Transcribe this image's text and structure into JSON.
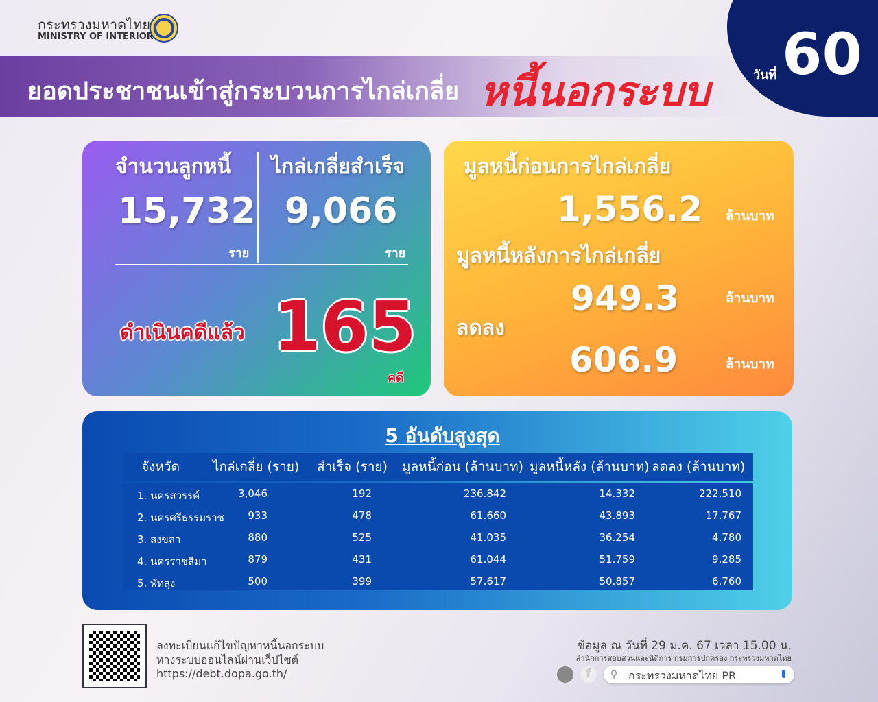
{
  "header": {
    "ministry_th": "กระทรวงมหาดไทย",
    "ministry_en": "MINISTRY OF INTERIOR",
    "title": "ยอดประชาชนเข้าสู่กระบวนการไกล่เกลี่ย",
    "title_highlight": "หนี้นอกระบบ",
    "day_label": "วันที่",
    "day_number": "60"
  },
  "left_card": {
    "debtors_label": "จำนวนลูกหนี้",
    "debtors_value": "15,732",
    "debtors_unit": "ราย",
    "success_label": "ไกล่เกลี่ยสำเร็จ",
    "success_value": "9,066",
    "success_unit": "ราย",
    "court_label": "ดำเนินคดีแล้ว",
    "court_value": "165",
    "court_unit": "คดี"
  },
  "right_card": {
    "before_label": "มูลหนี้ก่อนการไกล่เกลี่ย",
    "before_value": "1,556.2",
    "before_unit": "ล้านบาท",
    "after_label": "มูลหนี้หลังการไกล่เกลี่ย",
    "after_value": "949.3",
    "after_unit": "ล้านบาท",
    "reduced_label": "ลดลง",
    "reduced_value": "606.9",
    "reduced_unit": "ล้านบาท"
  },
  "table": {
    "title": "5 อันดับสูงสุด",
    "headers": [
      "จังหวัด",
      "ไกล่เกลี่ย (ราย)",
      "สำเร็จ (ราย)",
      "มูลหนี้ก่อน (ล้านบาท)",
      "มูลหนี้หลัง (ล้านบาท)",
      "ลดลง (ล้านบาท)"
    ],
    "rows": [
      [
        "1. นครสวรรค์",
        "3,046",
        "192",
        "236.842",
        "14.332",
        "222.510"
      ],
      [
        "2. นครศรีธรรมราช",
        "933",
        "478",
        "61.660",
        "43.893",
        "17.767"
      ],
      [
        "3. สงขลา",
        "880",
        "525",
        "41.035",
        "36.254",
        "4.780"
      ],
      [
        "4. นครราชสีมา",
        "879",
        "431",
        "61.044",
        "51.759",
        "9.285"
      ],
      [
        "5. พัทลุง",
        "500",
        "399",
        "57.617",
        "50.857",
        "6.760"
      ]
    ]
  },
  "footer": {
    "register_line1": "ลงทะเบียนแก้ไขปัญหาหนี้นอกระบบ",
    "register_line2": "ทางระบบออนไลน์ผ่านเว็ปไซต์",
    "url": "https://debt.dopa.go.th/",
    "data_as_of": "ข้อมูล ณ วันที่ 29 ม.ค. 67 เวลา 15.00 น.",
    "office": "สำนักการสอบสวนและนิติการ กรมการปกครอง กระทรวงมหาดไทย",
    "search_text": "กระทรวงมหาดไทย PR"
  },
  "colors": {
    "highlight_red": "#e8222e",
    "navy": "#0b1f6b",
    "table_blue": "#0a49ad"
  }
}
